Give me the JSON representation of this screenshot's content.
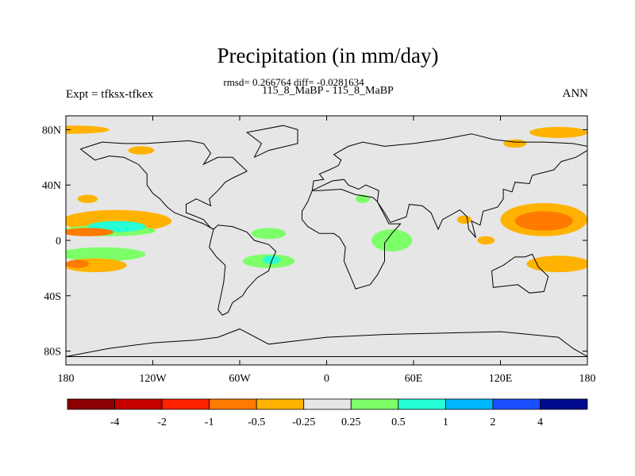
{
  "chart_data": {
    "type": "heatmap",
    "title": "Precipitation (in mm/day)",
    "stats_line": "rmsd= 0.266764 diff= -0.0281634",
    "case_line": "115_8_MaBP - 115_8_MaBP",
    "left_label": "Expt = tfksx-tfkex",
    "right_label": "ANN",
    "x_ticks": [
      "180",
      "120W",
      "60W",
      "0",
      "60E",
      "120E",
      "180"
    ],
    "x_values": [
      -180,
      -120,
      -60,
      0,
      60,
      120,
      180
    ],
    "y_ticks": [
      "80N",
      "40N",
      "0",
      "40S",
      "80S"
    ],
    "y_values": [
      80,
      40,
      0,
      -40,
      -80
    ],
    "xlim": [
      -180,
      180
    ],
    "ylim": [
      -90,
      90
    ],
    "colorbar": {
      "colors": [
        "#8b0000",
        "#c40000",
        "#ff2200",
        "#ff7a00",
        "#ffb300",
        "#e6e6e6",
        "#7dff6a",
        "#26ffd6",
        "#00b7ff",
        "#1a50ff",
        "#000a8c"
      ],
      "labels": [
        "-4",
        "-2",
        "-1",
        "-0.5",
        "-0.25",
        "0.25",
        "0.5",
        "1",
        "2",
        "4"
      ]
    },
    "anomaly_regions": [
      {
        "lon": -145,
        "lat": 14,
        "rx": 38,
        "ry": 8,
        "level": -0.3
      },
      {
        "lon": -150,
        "lat": 7,
        "rx": 32,
        "ry": 4,
        "level": 0.35
      },
      {
        "lon": -145,
        "lat": 10,
        "rx": 20,
        "ry": 4,
        "level": 0.7
      },
      {
        "lon": -165,
        "lat": 6,
        "rx": 18,
        "ry": 3,
        "level": -0.6
      },
      {
        "lon": -155,
        "lat": -10,
        "rx": 30,
        "ry": 5,
        "level": 0.35
      },
      {
        "lon": -160,
        "lat": -18,
        "rx": 22,
        "ry": 5,
        "level": -0.3
      },
      {
        "lon": -172,
        "lat": -17,
        "rx": 8,
        "ry": 3,
        "level": -0.6
      },
      {
        "lon": -175,
        "lat": 80,
        "rx": 25,
        "ry": 3,
        "level": -0.3
      },
      {
        "lon": -128,
        "lat": 65,
        "rx": 9,
        "ry": 3,
        "level": -0.3
      },
      {
        "lon": -165,
        "lat": 30,
        "rx": 7,
        "ry": 3,
        "level": -0.3
      },
      {
        "lon": -40,
        "lat": 5,
        "rx": 12,
        "ry": 4,
        "level": 0.35
      },
      {
        "lon": -40,
        "lat": -15,
        "rx": 18,
        "ry": 5,
        "level": 0.35
      },
      {
        "lon": -38,
        "lat": -14,
        "rx": 6,
        "ry": 3,
        "level": 0.7
      },
      {
        "lon": 45,
        "lat": 2,
        "rx": 10,
        "ry": 5,
        "level": 0.7
      },
      {
        "lon": 45,
        "lat": 0,
        "rx": 14,
        "ry": 8,
        "level": 0.35
      },
      {
        "lon": 25,
        "lat": 30,
        "rx": 5,
        "ry": 3,
        "level": 0.35
      },
      {
        "lon": 150,
        "lat": 15,
        "rx": 30,
        "ry": 12,
        "level": -0.3
      },
      {
        "lon": 150,
        "lat": 14,
        "rx": 20,
        "ry": 7,
        "level": -0.6
      },
      {
        "lon": 172,
        "lat": -17,
        "rx": 10,
        "ry": 4,
        "level": -0.6
      },
      {
        "lon": 160,
        "lat": -17,
        "rx": 22,
        "ry": 6,
        "level": -0.3
      },
      {
        "lon": 160,
        "lat": 78,
        "rx": 20,
        "ry": 4,
        "level": -0.3
      },
      {
        "lon": 130,
        "lat": 70,
        "rx": 8,
        "ry": 3,
        "level": -0.3
      },
      {
        "lon": 95,
        "lat": 15,
        "rx": 5,
        "ry": 3,
        "level": -0.3
      },
      {
        "lon": 110,
        "lat": 0,
        "rx": 6,
        "ry": 3,
        "level": -0.3
      }
    ],
    "continent_outlines": [
      [
        [
          -170,
          66
        ],
        [
          -155,
          71
        ],
        [
          -140,
          70
        ],
        [
          -125,
          70
        ],
        [
          -95,
          72
        ],
        [
          -85,
          70
        ],
        [
          -80,
          63
        ],
        [
          -85,
          55
        ],
        [
          -75,
          60
        ],
        [
          -65,
          60
        ],
        [
          -60,
          55
        ],
        [
          -55,
          50
        ],
        [
          -65,
          45
        ],
        [
          -70,
          42
        ],
        [
          -75,
          36
        ],
        [
          -81,
          30
        ],
        [
          -80,
          25
        ],
        [
          -90,
          30
        ],
        [
          -97,
          26
        ],
        [
          -97,
          20
        ],
        [
          -92,
          18
        ],
        [
          -85,
          15
        ],
        [
          -80,
          9
        ],
        [
          -78,
          8
        ],
        [
          -85,
          12
        ],
        [
          -90,
          14
        ],
        [
          -105,
          20
        ],
        [
          -110,
          24
        ],
        [
          -115,
          30
        ],
        [
          -120,
          34
        ],
        [
          -124,
          40
        ],
        [
          -124,
          48
        ],
        [
          -130,
          55
        ],
        [
          -140,
          60
        ],
        [
          -150,
          61
        ],
        [
          -160,
          58
        ],
        [
          -165,
          62
        ],
        [
          -170,
          66
        ]
      ],
      [
        [
          -78,
          8
        ],
        [
          -75,
          11
        ],
        [
          -65,
          10
        ],
        [
          -55,
          6
        ],
        [
          -50,
          0
        ],
        [
          -40,
          -3
        ],
        [
          -35,
          -8
        ],
        [
          -38,
          -15
        ],
        [
          -40,
          -22
        ],
        [
          -48,
          -27
        ],
        [
          -55,
          -35
        ],
        [
          -58,
          -40
        ],
        [
          -65,
          -45
        ],
        [
          -68,
          -52
        ],
        [
          -72,
          -54
        ],
        [
          -75,
          -50
        ],
        [
          -73,
          -40
        ],
        [
          -71,
          -30
        ],
        [
          -70,
          -18
        ],
        [
          -76,
          -12
        ],
        [
          -81,
          -5
        ],
        [
          -80,
          0
        ],
        [
          -78,
          8
        ]
      ],
      [
        [
          -10,
          36
        ],
        [
          -5,
          36
        ],
        [
          10,
          37
        ],
        [
          20,
          33
        ],
        [
          32,
          31
        ],
        [
          35,
          28
        ],
        [
          43,
          12
        ],
        [
          51,
          12
        ],
        [
          45,
          5
        ],
        [
          40,
          -2
        ],
        [
          40,
          -15
        ],
        [
          35,
          -25
        ],
        [
          30,
          -32
        ],
        [
          20,
          -35
        ],
        [
          18,
          -30
        ],
        [
          12,
          -15
        ],
        [
          13,
          -5
        ],
        [
          9,
          2
        ],
        [
          5,
          5
        ],
        [
          -5,
          5
        ],
        [
          -13,
          10
        ],
        [
          -17,
          15
        ],
        [
          -17,
          21
        ],
        [
          -13,
          28
        ],
        [
          -10,
          36
        ]
      ],
      [
        [
          -10,
          36
        ],
        [
          -9,
          43
        ],
        [
          -2,
          44
        ],
        [
          -5,
          48
        ],
        [
          2,
          51
        ],
        [
          8,
          54
        ],
        [
          10,
          58
        ],
        [
          5,
          62
        ],
        [
          15,
          68
        ],
        [
          25,
          71
        ],
        [
          40,
          68
        ],
        [
          60,
          70
        ],
        [
          80,
          73
        ],
        [
          100,
          77
        ],
        [
          115,
          73
        ],
        [
          130,
          71
        ],
        [
          150,
          71
        ],
        [
          170,
          70
        ],
        [
          180,
          68
        ],
        [
          180,
          65
        ],
        [
          172,
          60
        ],
        [
          162,
          57
        ],
        [
          157,
          51
        ],
        [
          142,
          47
        ],
        [
          140,
          41
        ],
        [
          130,
          42
        ],
        [
          128,
          35
        ],
        [
          122,
          37
        ],
        [
          122,
          30
        ],
        [
          118,
          24
        ],
        [
          108,
          21
        ],
        [
          106,
          11
        ],
        [
          100,
          14
        ],
        [
          103,
          2
        ],
        [
          98,
          8
        ],
        [
          97,
          17
        ],
        [
          92,
          22
        ],
        [
          80,
          15
        ],
        [
          77,
          8
        ],
        [
          72,
          20
        ],
        [
          66,
          25
        ],
        [
          57,
          26
        ],
        [
          55,
          17
        ],
        [
          44,
          13
        ],
        [
          40,
          20
        ],
        [
          35,
          28
        ],
        [
          36,
          36
        ],
        [
          27,
          40
        ],
        [
          22,
          37
        ],
        [
          15,
          40
        ],
        [
          12,
          44
        ],
        [
          4,
          43
        ],
        [
          -10,
          36
        ]
      ],
      [
        [
          114,
          -22
        ],
        [
          122,
          -18
        ],
        [
          130,
          -12
        ],
        [
          137,
          -12
        ],
        [
          142,
          -10
        ],
        [
          146,
          -19
        ],
        [
          153,
          -26
        ],
        [
          150,
          -37
        ],
        [
          140,
          -38
        ],
        [
          132,
          -32
        ],
        [
          115,
          -34
        ],
        [
          114,
          -22
        ]
      ],
      [
        [
          -75,
          -70
        ],
        [
          -60,
          -64
        ],
        [
          -40,
          -75
        ],
        [
          0,
          -70
        ],
        [
          40,
          -68
        ],
        [
          80,
          -67
        ],
        [
          120,
          -66
        ],
        [
          160,
          -70
        ],
        [
          170,
          -78
        ],
        [
          180,
          -84
        ],
        [
          -180,
          -84
        ],
        [
          -150,
          -78
        ],
        [
          -120,
          -74
        ],
        [
          -90,
          -72
        ],
        [
          -75,
          -70
        ]
      ],
      [
        [
          -50,
          60
        ],
        [
          -45,
          70
        ],
        [
          -55,
          78
        ],
        [
          -30,
          83
        ],
        [
          -20,
          80
        ],
        [
          -20,
          70
        ],
        [
          -40,
          65
        ],
        [
          -50,
          60
        ]
      ]
    ]
  }
}
